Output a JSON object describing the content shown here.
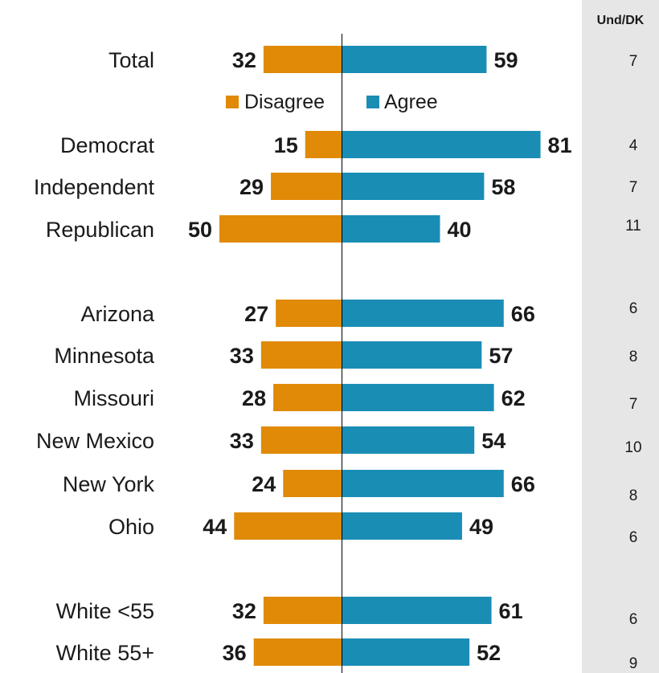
{
  "chart_data": {
    "type": "bar",
    "orientation": "horizontal-diverging",
    "categories": [
      "Total",
      "Democrat",
      "Independent",
      "Republican",
      "Arizona",
      "Minnesota",
      "Missouri",
      "New Mexico",
      "New York",
      "Ohio",
      "White <55",
      "White 55+"
    ],
    "series": [
      {
        "name": "Disagree",
        "color": "#E08A07",
        "values": [
          32,
          15,
          29,
          50,
          27,
          33,
          28,
          33,
          24,
          44,
          32,
          36
        ]
      },
      {
        "name": "Agree",
        "color": "#1A8DB5",
        "values": [
          59,
          81,
          58,
          40,
          66,
          57,
          62,
          54,
          66,
          49,
          61,
          52
        ]
      }
    ],
    "und_dk": {
      "header": "Und/DK",
      "values": [
        7,
        4,
        7,
        11,
        6,
        8,
        7,
        10,
        8,
        6,
        6,
        9
      ]
    },
    "legend": {
      "position": "below-first-row",
      "entries": [
        "Disagree",
        "Agree"
      ]
    },
    "grid": false
  }
}
